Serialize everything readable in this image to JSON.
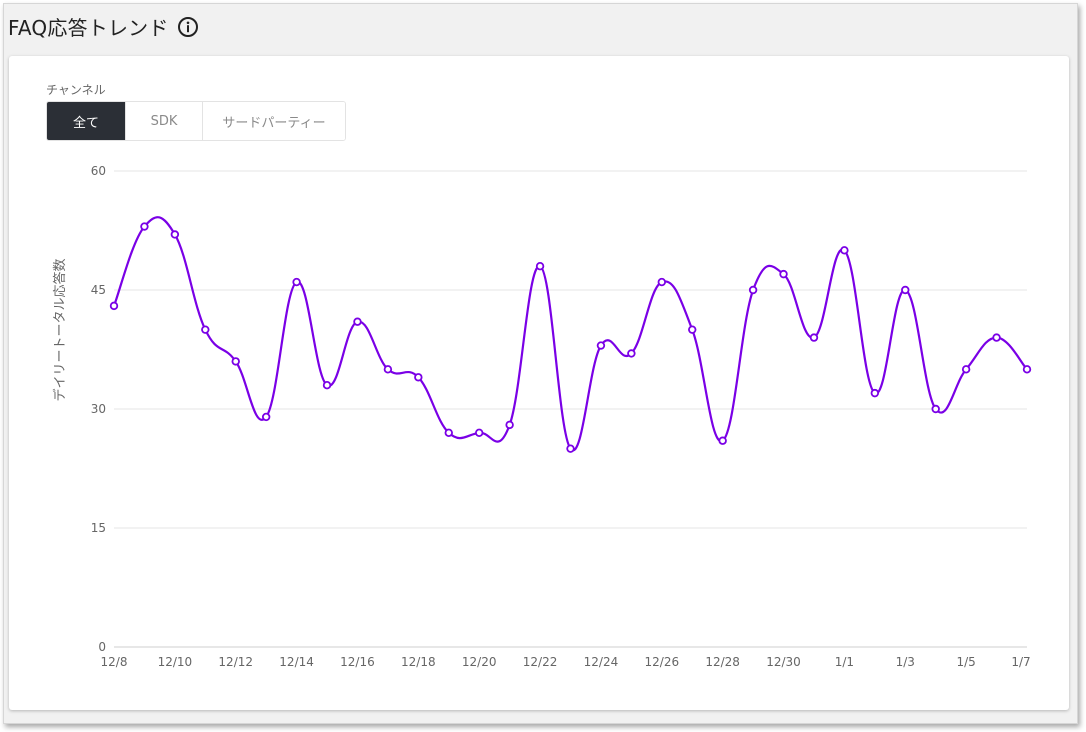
{
  "header": {
    "title": "FAQ応答トレンド",
    "icon": "info-circle-icon"
  },
  "filters": {
    "label": "チャンネル",
    "options": [
      {
        "label": "全て",
        "active": true
      },
      {
        "label": "SDK",
        "active": false
      },
      {
        "label": "サードパーティー",
        "active": false
      }
    ]
  },
  "chart_data": {
    "type": "line",
    "title": "",
    "xlabel": "",
    "ylabel": "デイリートータル応答数",
    "ylim": [
      0,
      60
    ],
    "yticks": [
      0,
      15,
      30,
      45,
      60
    ],
    "grid": true,
    "legend": "none",
    "color": "#7a00e6",
    "x": [
      "12/8",
      "12/9",
      "12/10",
      "12/11",
      "12/12",
      "12/13",
      "12/14",
      "12/15",
      "12/16",
      "12/17",
      "12/18",
      "12/19",
      "12/20",
      "12/21",
      "12/22",
      "12/23",
      "12/24",
      "12/25",
      "12/26",
      "12/27",
      "12/28",
      "12/29",
      "12/30",
      "12/31",
      "1/1",
      "1/2",
      "1/3",
      "1/4",
      "1/5",
      "1/6",
      "1/7"
    ],
    "xticks": [
      "12/8",
      "12/10",
      "12/12",
      "12/14",
      "12/16",
      "12/18",
      "12/20",
      "12/22",
      "12/24",
      "12/26",
      "12/28",
      "12/30",
      "1/1",
      "1/3",
      "1/5",
      "1/7"
    ],
    "series": [
      {
        "values": [
          43,
          53,
          52,
          40,
          36,
          29,
          46,
          33,
          41,
          35,
          34,
          27,
          27,
          28,
          48,
          25,
          38,
          37,
          46,
          40,
          26,
          45,
          47,
          39,
          50,
          32,
          45,
          30,
          35,
          39,
          35
        ]
      }
    ]
  }
}
